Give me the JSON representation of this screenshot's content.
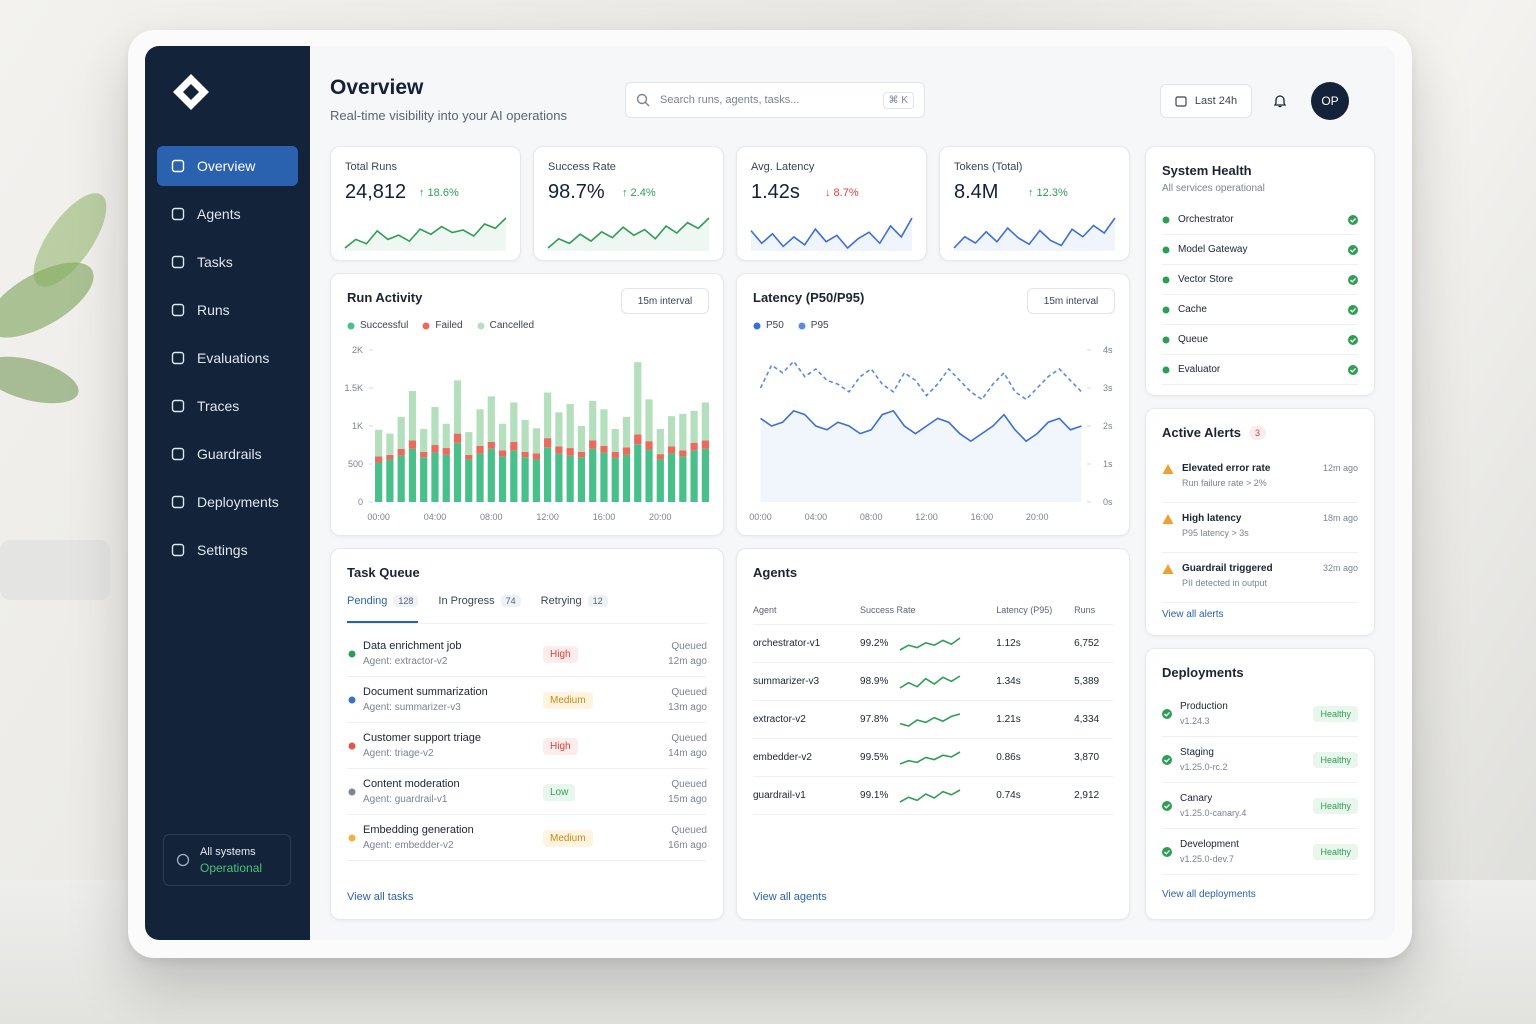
{
  "sidebar": {
    "nav": [
      "Overview",
      "Agents",
      "Tasks",
      "Runs",
      "Evaluations",
      "Traces",
      "Guardrails",
      "Deployments",
      "Settings"
    ],
    "status": {
      "title": "All systems",
      "state": "Operational"
    }
  },
  "header": {
    "title": "Overview",
    "subtitle": "Real-time visibility into your AI operations",
    "search_placeholder": "Search runs, agents, tasks...",
    "shortcut": "⌘ K",
    "range": "Last 24h",
    "avatar": "OP"
  },
  "kpis": [
    {
      "label": "Total Runs",
      "value": "24,812",
      "change": "↑ 18.6%",
      "trend": "up",
      "color": "#2f9e55",
      "spark": [
        3,
        4,
        3.5,
        5,
        4,
        4.5,
        3.8,
        5.2,
        4.6,
        5.5,
        4.8,
        5.1,
        4.4,
        5.8,
        5.3,
        6.5
      ]
    },
    {
      "label": "Success Rate",
      "value": "98.7%",
      "change": "↑ 2.4%",
      "trend": "up",
      "color": "#2f9e55",
      "spark": [
        3,
        3.8,
        3.4,
        4.2,
        3.6,
        4.4,
        3.9,
        4.8,
        4.1,
        4.6,
        3.8,
        4.9,
        4.3,
        5.2,
        4.7,
        5.6
      ]
    },
    {
      "label": "Avg. Latency",
      "value": "1.42s",
      "change": "↓ 8.7%",
      "trend": "down",
      "color": "#3b6fd8",
      "spark": [
        4,
        3.2,
        3.8,
        3,
        3.6,
        3.1,
        4.1,
        3.3,
        3.7,
        2.9,
        3.5,
        3.9,
        3.2,
        4.3,
        3.6,
        4.8
      ]
    },
    {
      "label": "Tokens (Total)",
      "value": "8.4M",
      "change": "↑ 12.3%",
      "trend": "up",
      "color": "#3b6fd8",
      "spark": [
        3,
        3.9,
        3.4,
        4.3,
        3.5,
        4.6,
        3.8,
        3.3,
        4.4,
        3.6,
        3.2,
        4.5,
        3.9,
        4.8,
        4.2,
        5.4
      ]
    }
  ],
  "chart_data": [
    {
      "type": "stacked_bar",
      "title": "Run Activity",
      "interval": "15m interval",
      "categories": [
        "00:00",
        null,
        null,
        null,
        null,
        "04:00",
        null,
        null,
        null,
        null,
        "08:00",
        null,
        null,
        null,
        null,
        "12:00",
        null,
        null,
        null,
        null,
        "16:00",
        null,
        null,
        null,
        null,
        "20:00",
        null,
        null,
        null,
        null
      ],
      "series": [
        {
          "name": "Successful",
          "color": "#49bf8a",
          "values": [
            520,
            560,
            610,
            700,
            590,
            650,
            620,
            780,
            560,
            640,
            700,
            600,
            680,
            590,
            560,
            720,
            640,
            610,
            590,
            700,
            650,
            580,
            620,
            760,
            690,
            560,
            640,
            600,
            680,
            700
          ]
        },
        {
          "name": "Failed",
          "color": "#ec6a5c",
          "values": [
            80,
            60,
            90,
            110,
            70,
            100,
            90,
            120,
            60,
            100,
            90,
            80,
            110,
            70,
            80,
            120,
            90,
            100,
            70,
            110,
            90,
            80,
            100,
            130,
            110,
            70,
            90,
            80,
            100,
            110
          ]
        },
        {
          "name": "Cancelled",
          "color": "#b4dfbd",
          "values": [
            350,
            280,
            420,
            650,
            300,
            500,
            320,
            700,
            300,
            480,
            600,
            350,
            520,
            420,
            330,
            600,
            450,
            580,
            340,
            520,
            480,
            300,
            400,
            950,
            550,
            330,
            400,
            480,
            420,
            500
          ]
        }
      ],
      "ylim": [
        0,
        2000
      ],
      "yticks": [
        0,
        500,
        {
          "value": 1000,
          "label": "1K"
        },
        {
          "value": 1500,
          "label": "1.5K"
        },
        {
          "value": 2000,
          "label": "2K"
        }
      ],
      "grid": false
    },
    {
      "type": "line",
      "title": "Latency (P50/P95)",
      "interval": "15m interval",
      "categories": [
        "00:00",
        null,
        null,
        null,
        null,
        "04:00",
        null,
        null,
        null,
        null,
        "08:00",
        null,
        null,
        null,
        null,
        "12:00",
        null,
        null,
        null,
        null,
        "16:00",
        null,
        null,
        null,
        null,
        "20:00",
        null,
        null,
        null,
        null
      ],
      "series": [
        {
          "name": "P50",
          "color": "#3b6fd8",
          "style": "solid",
          "fill": true,
          "values": [
            2.2,
            2.0,
            2.1,
            2.4,
            2.3,
            2.0,
            1.9,
            2.1,
            2.0,
            1.8,
            1.9,
            2.3,
            2.4,
            2.0,
            1.8,
            2.0,
            2.2,
            2.1,
            1.8,
            1.6,
            1.8,
            2.0,
            2.3,
            1.9,
            1.6,
            1.8,
            2.1,
            2.2,
            1.9,
            2.0
          ]
        },
        {
          "name": "P95",
          "color": "#5b8ae6",
          "style": "dashed",
          "fill": false,
          "values": [
            3.0,
            3.6,
            3.4,
            3.7,
            3.3,
            3.5,
            3.2,
            3.1,
            2.9,
            3.3,
            3.5,
            3.1,
            2.9,
            3.4,
            3.2,
            2.8,
            3.1,
            3.5,
            3.2,
            2.9,
            2.7,
            3.1,
            3.4,
            2.9,
            2.7,
            3.0,
            3.3,
            3.5,
            3.2,
            2.9
          ]
        }
      ],
      "ylim": [
        0,
        4
      ],
      "yticks": [
        {
          "value": 0,
          "label": "0s"
        },
        {
          "value": 1,
          "label": "1s"
        },
        {
          "value": 2,
          "label": "2s"
        },
        {
          "value": 3,
          "label": "3s"
        },
        {
          "value": 4,
          "label": "4s"
        }
      ],
      "y_axis_side": "right",
      "grid": false
    }
  ],
  "task_queue": {
    "title": "Task Queue",
    "tabs": [
      {
        "label": "Pending",
        "count": 128
      },
      {
        "label": "In Progress",
        "count": 74
      },
      {
        "label": "Retrying",
        "count": 12
      }
    ],
    "tasks": [
      {
        "name": "Data enrichment job",
        "agent": "Agent: extractor-v2",
        "priority": "High",
        "tone": "red",
        "dot": "#2f9e55",
        "status": "Queued",
        "time": "12m ago"
      },
      {
        "name": "Document summarization",
        "agent": "Agent: summarizer-v3",
        "priority": "Medium",
        "tone": "amber",
        "dot": "#3b6fd8",
        "status": "Queued",
        "time": "13m ago"
      },
      {
        "name": "Customer support triage",
        "agent": "Agent: triage-v2",
        "priority": "High",
        "tone": "red",
        "dot": "#e0574a",
        "status": "Queued",
        "time": "14m ago"
      },
      {
        "name": "Content moderation",
        "agent": "Agent: guardrail-v1",
        "priority": "Low",
        "tone": "green",
        "dot": "#7a8494",
        "status": "Queued",
        "time": "15m ago"
      },
      {
        "name": "Embedding generation",
        "agent": "Agent: embedder-v2",
        "priority": "Medium",
        "tone": "amber",
        "dot": "#f0b43c",
        "status": "Queued",
        "time": "16m ago"
      }
    ],
    "link": "View all tasks"
  },
  "agents": {
    "title": "Agents",
    "columns": [
      "Agent",
      "Success Rate",
      "Latency (P95)",
      "Runs"
    ],
    "rows": [
      [
        "orchestrator-v1",
        "99.2%",
        "1.12s",
        "6,752"
      ],
      [
        "summarizer-v3",
        "98.9%",
        "1.34s",
        "5,389"
      ],
      [
        "extractor-v2",
        "97.8%",
        "1.21s",
        "4,334"
      ],
      [
        "embedder-v2",
        "99.5%",
        "0.86s",
        "3,870"
      ],
      [
        "guardrail-v1",
        "99.1%",
        "0.74s",
        "2,912"
      ]
    ],
    "spark_color": "#2f9e55",
    "sparks": [
      [
        2,
        3,
        2.5,
        3.5,
        3,
        4,
        3.2,
        4.5
      ],
      [
        2,
        2.8,
        2.2,
        3.4,
        2.6,
        3.6,
        3,
        3.8
      ],
      [
        2.4,
        2,
        3,
        2.6,
        3.4,
        2.8,
        3.6,
        4
      ],
      [
        2,
        2.6,
        2.3,
        3.2,
        2.8,
        3.6,
        3.3,
        4.2
      ],
      [
        2.2,
        2.8,
        2.4,
        3.2,
        2.7,
        3.5,
        3.1,
        3.7
      ]
    ],
    "link": "View all agents"
  },
  "system_health": {
    "title": "System Health",
    "subtitle": "All services operational",
    "services": [
      "Orchestrator",
      "Model Gateway",
      "Vector Store",
      "Cache",
      "Queue",
      "Evaluator"
    ]
  },
  "alerts": {
    "title": "Active Alerts",
    "count": 3,
    "items": [
      {
        "title": "Elevated error rate",
        "detail": "Run failure rate > 2%",
        "time": "12m ago"
      },
      {
        "title": "High latency",
        "detail": "P95 latency > 3s",
        "time": "18m ago"
      },
      {
        "title": "Guardrail triggered",
        "detail": "PII detected in output",
        "time": "32m ago"
      }
    ],
    "link": "View all alerts"
  },
  "deployments": {
    "title": "Deployments",
    "items": [
      {
        "name": "Production",
        "version": "v1.24.3",
        "status": "Healthy"
      },
      {
        "name": "Staging",
        "version": "v1.25.0-rc.2",
        "status": "Healthy"
      },
      {
        "name": "Canary",
        "version": "v1.25.0-canary.4",
        "status": "Healthy"
      },
      {
        "name": "Development",
        "version": "v1.25.0-dev.7",
        "status": "Healthy"
      }
    ],
    "link": "View all deployments"
  }
}
